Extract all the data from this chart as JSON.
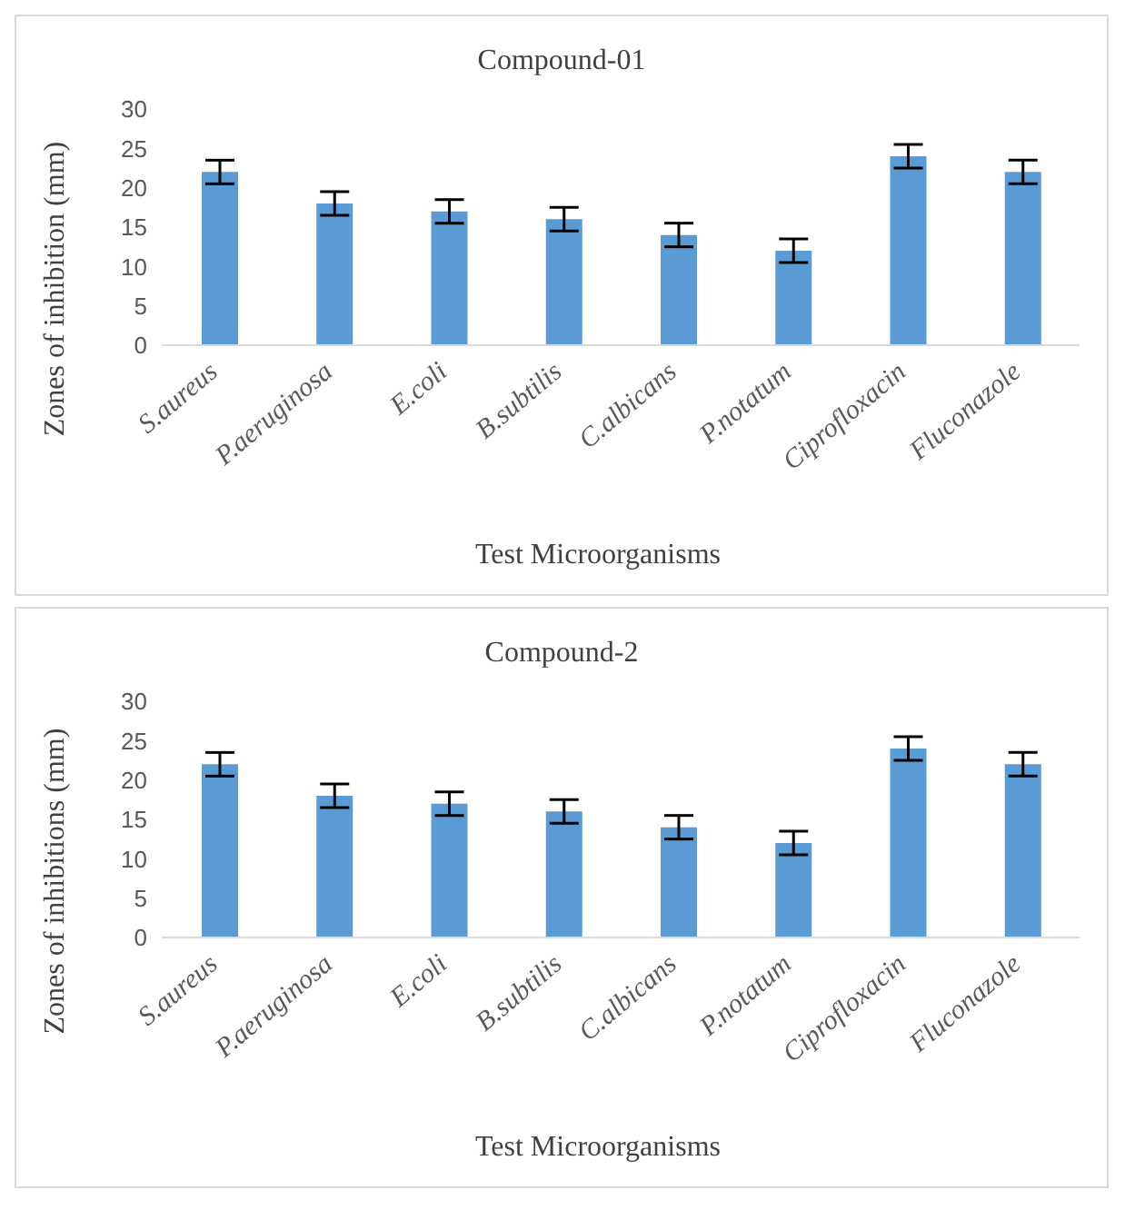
{
  "chart_data": [
    {
      "type": "bar",
      "title": "Compound-01",
      "xlabel": "Test Microorganisms",
      "ylabel": "Zones of inhibition  (mm)",
      "categories": [
        "S.aureus",
        "P.aeruginosa",
        "E.coli",
        "B.subtilis",
        "C.albicans",
        "P.notatum",
        "Ciprofloxacin",
        "Fluconazole"
      ],
      "values": [
        22,
        18,
        17,
        16,
        14,
        12,
        24,
        22
      ],
      "errors": [
        1.5,
        1.5,
        1.5,
        1.5,
        1.5,
        1.5,
        1.5,
        1.5
      ],
      "color": "#5b9bd5",
      "ylim": [
        0,
        30
      ],
      "yticks": [
        0,
        5,
        10,
        15,
        20,
        25,
        30
      ],
      "grid": false
    },
    {
      "type": "bar",
      "title": "Compound-2",
      "xlabel": "Test Microorganisms",
      "ylabel": "Zones of inhibitions  (mm)",
      "categories": [
        "S.aureus",
        "P.aeruginosa",
        "E.coli",
        "B.subtilis",
        "C.albicans",
        "P.notatum",
        "Ciprofloxacin",
        "Fluconazole"
      ],
      "values": [
        22,
        18,
        17,
        16,
        14,
        12,
        24,
        22
      ],
      "errors": [
        1.5,
        1.5,
        1.5,
        1.5,
        1.5,
        1.5,
        1.5,
        1.5
      ],
      "color": "#5b9bd5",
      "ylim": [
        0,
        30
      ],
      "yticks": [
        0,
        5,
        10,
        15,
        20,
        25,
        30
      ],
      "grid": false
    }
  ]
}
